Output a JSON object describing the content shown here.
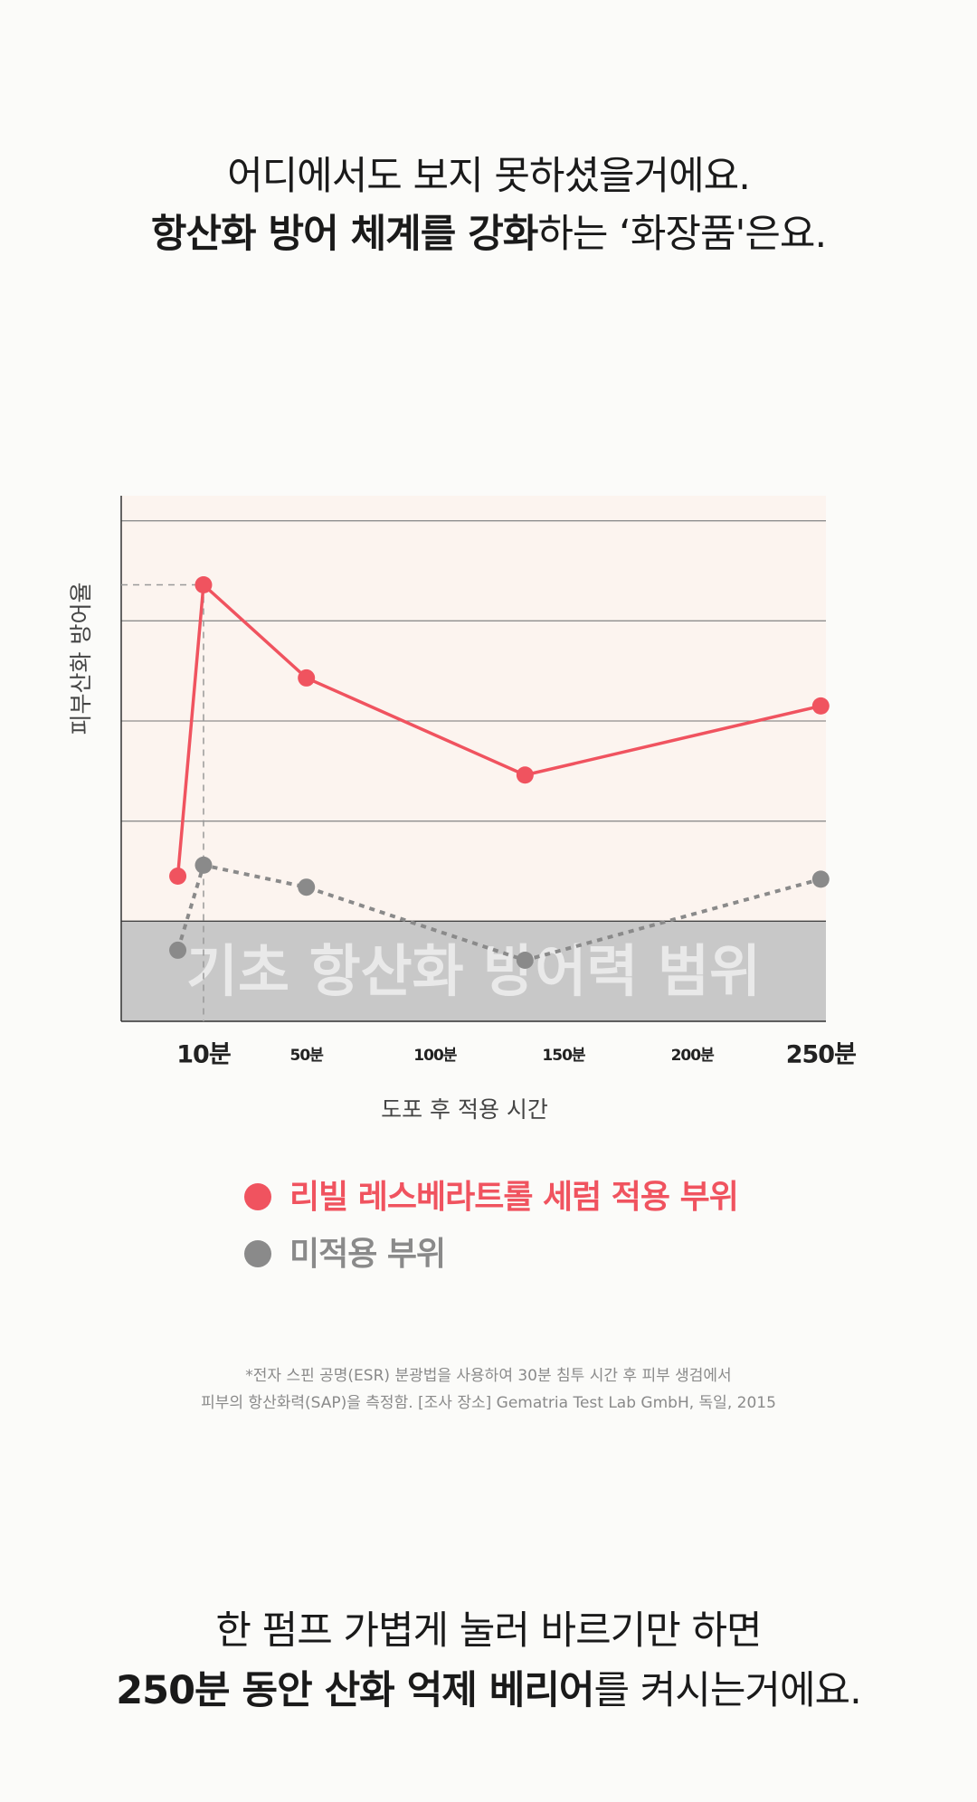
{
  "header": {
    "lines": [
      [
        {
          "text": "어디에서도 보지 못하셨을거에요.",
          "bold": false
        }
      ],
      [
        {
          "text": "항산화 방어 체계를 강화",
          "bold": true
        },
        {
          "text": "하는 ‘화장품'은요.",
          "bold": false
        }
      ]
    ]
  },
  "chart_data": {
    "type": "line",
    "y_label": "피부산화 방어율",
    "x_label": "도포 후 적용 시간",
    "x": [
      0,
      10,
      50,
      135,
      250
    ],
    "xlim": [
      -22,
      252
    ],
    "xticks": [
      {
        "value": 10,
        "label": "10분"
      },
      {
        "value": 50,
        "label": "50분"
      },
      {
        "value": 100,
        "label": "100분"
      },
      {
        "value": 150,
        "label": "150분"
      },
      {
        "value": 200,
        "label": "200분"
      },
      {
        "value": 250,
        "label": "250분"
      }
    ],
    "ylim": [
      0,
      5.25
    ],
    "yticks": [
      1,
      2,
      3,
      4,
      5
    ],
    "grid": true,
    "band": {
      "label": "기초 항산화 방어력 범위",
      "range": [
        0,
        1
      ],
      "color": "#c8c8c8"
    },
    "series": [
      {
        "name": "리빌 레스베라트롤 세럼 적용 부위",
        "color": "#f0535f",
        "dashed": false,
        "values": [
          1.45,
          4.36,
          3.43,
          2.46,
          3.15
        ]
      },
      {
        "name": "미적용 부위",
        "color": "#8a8a8a",
        "dashed": true,
        "values": [
          0.71,
          1.56,
          1.34,
          0.61,
          1.42
        ]
      }
    ]
  },
  "footnote": [
    "*전자 스핀 공명(ESR) 분광법을 사용하여 30분 침투 시간 후 피부 생검에서",
    "피부의 항산화력(SAP)을 측정함. [조사 장소] Gematria Test Lab GmbH, 독일, 2015"
  ],
  "closing": {
    "lines": [
      [
        {
          "text": "한 펌프 가볍게 눌러 바르기만 하면",
          "bold": false
        }
      ],
      [
        {
          "text": "250분 동안 산화 억제 베리어",
          "bold": true
        },
        {
          "text": "를 켜시는거에요.",
          "bold": false
        }
      ]
    ]
  }
}
